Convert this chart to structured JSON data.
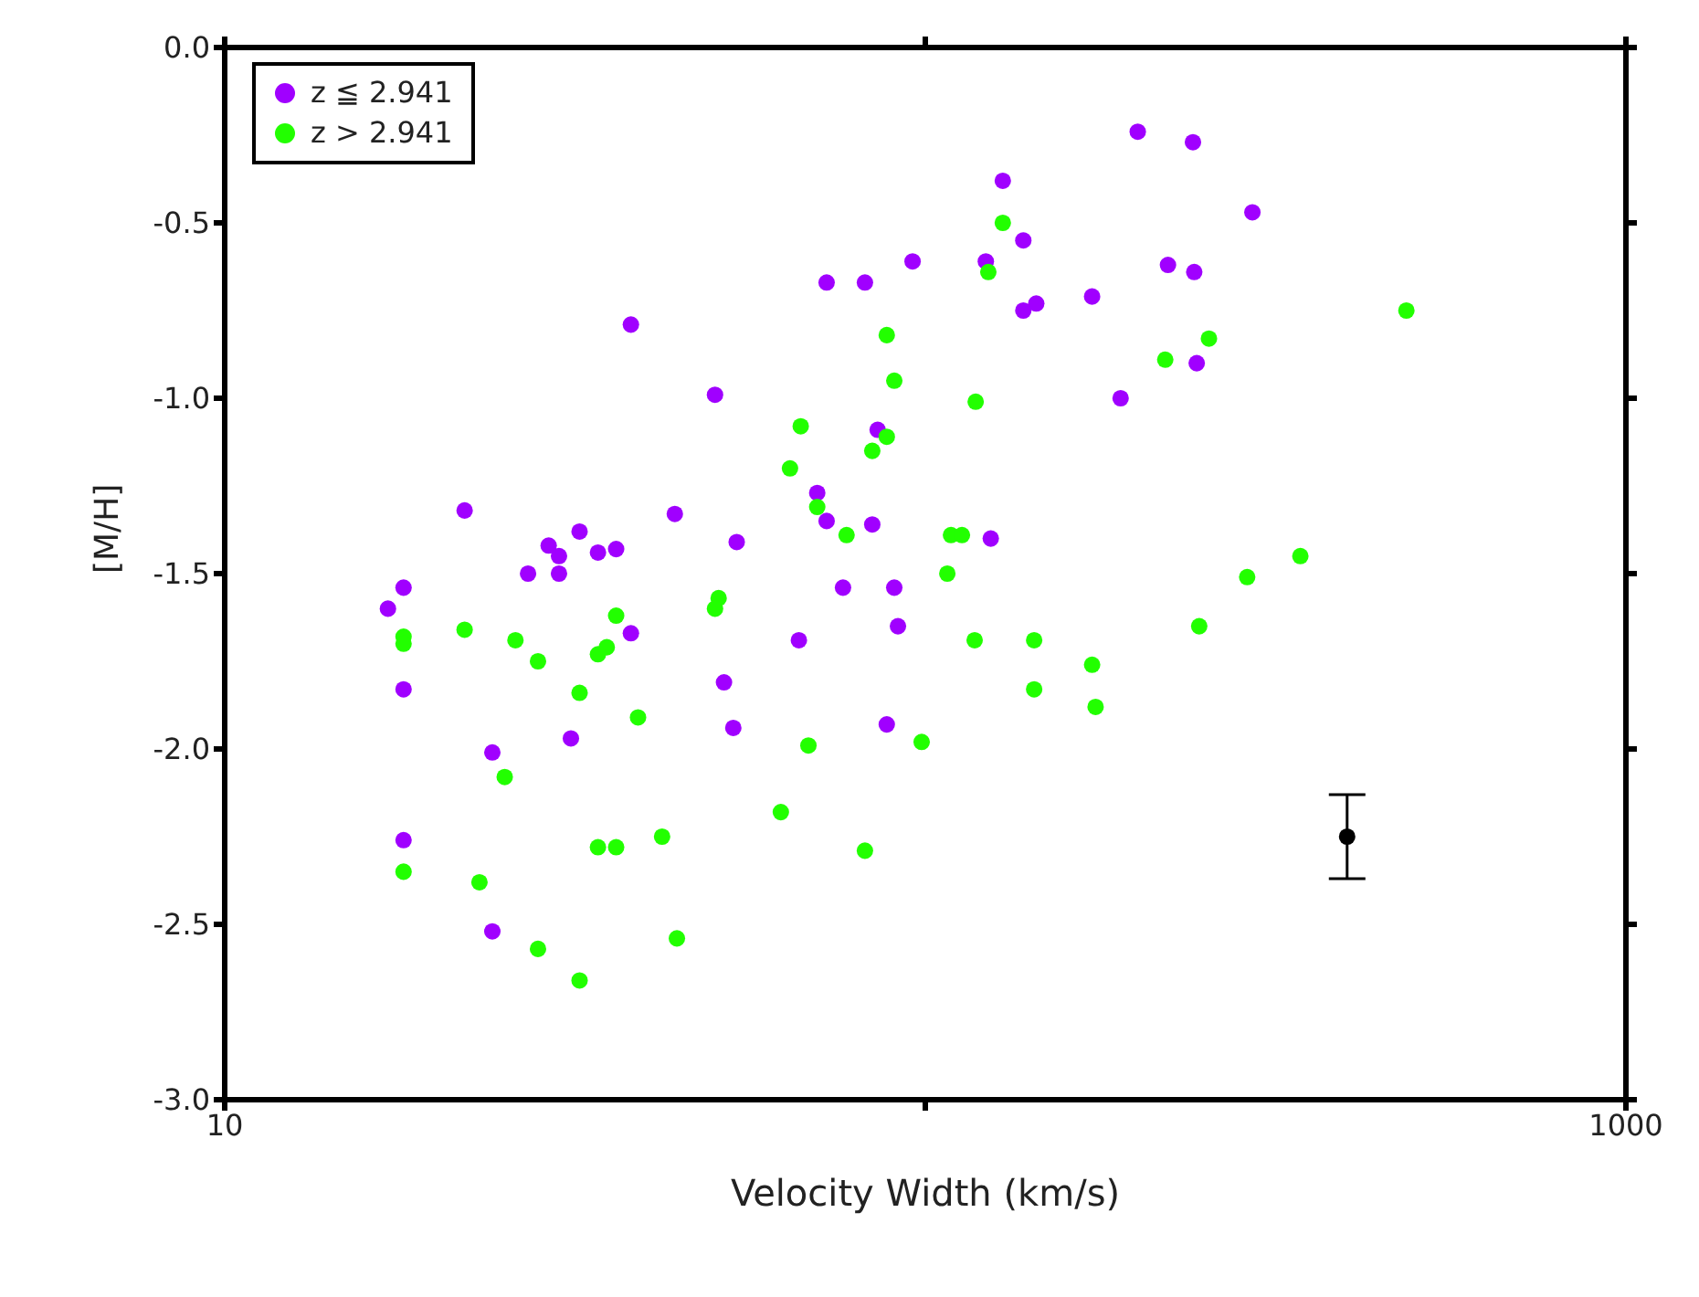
{
  "chart_data": {
    "type": "scatter",
    "xlabel": "Velocity Width (km/s)",
    "ylabel": "[M/H]",
    "log": "x",
    "xlim": [
      10,
      1000
    ],
    "xticks": [
      10,
      {
        "value": 100,
        "label": null
      },
      1000
    ],
    "ylim": [
      -3,
      0
    ],
    "yticks": [
      {
        "value": -3,
        "label": "-3.0"
      },
      {
        "value": -2.5,
        "label": "-2.5"
      },
      {
        "value": -2,
        "label": "-2.0"
      },
      {
        "value": -1.5,
        "label": "-1.5"
      },
      {
        "value": -1,
        "label": "-1.0"
      },
      {
        "value": -0.5,
        "label": "-0.5"
      },
      {
        "value": 0,
        "label": "0.0"
      }
    ],
    "legend": "top left",
    "marker": "circle",
    "series": [
      {
        "name": "z ≦ 2.941",
        "color": "#a000ff",
        "x": [
          17.1,
          18.0,
          18.0,
          18.0,
          24.1,
          24.1,
          22.0,
          32.1,
          29.0,
          30.0,
          30.0,
          27.1,
          34.1,
          36.2,
          38.0,
          43.9,
          50.1,
          53.8,
          72.3,
          82.0,
          95.9,
          85.5,
          70.1,
          72.3,
          84.0,
          76.3,
          90.3,
          38.0,
          31.2,
          66.0,
          51.6,
          53.2,
          91.4,
          88.1,
          201,
          241,
          129,
          293,
          138,
          122,
          222,
          242,
          144,
          138,
          173,
          244,
          190,
          124
        ],
        "values": [
          -1.6,
          -1.54,
          -1.83,
          -2.26,
          -2.52,
          -2.01,
          -1.32,
          -1.38,
          -1.42,
          -1.45,
          -1.5,
          -1.5,
          -1.44,
          -1.43,
          -0.79,
          -1.33,
          -0.99,
          -1.41,
          -0.67,
          -0.67,
          -0.61,
          -1.09,
          -1.27,
          -1.35,
          -1.36,
          -1.54,
          -1.54,
          -1.67,
          -1.97,
          -1.69,
          -1.81,
          -1.94,
          -1.65,
          -1.93,
          -0.24,
          -0.27,
          -0.38,
          -0.47,
          -0.55,
          -0.61,
          -0.62,
          -0.64,
          -0.73,
          -0.75,
          -0.71,
          -0.9,
          -1.0,
          -1.4
        ]
      },
      {
        "name": "z > 2.941",
        "color": "#22ff00",
        "x": [
          88.1,
          90.3,
          66.4,
          88.1,
          84.0,
          64.1,
          70.1,
          77.2,
          107.5,
          129,
          123,
          486,
          254,
          220,
          118,
          108.8,
          112.8,
          288,
          343,
          117.6,
          143,
          173,
          143,
          175,
          98.8,
          246,
          50.7,
          50.1,
          36.2,
          18.0,
          18.0,
          22.0,
          26.0,
          28.0,
          35.1,
          34.1,
          32.1,
          38.9,
          68.1,
          25.1,
          62.2,
          42.1,
          34.1,
          36.2,
          82.0,
          18.0,
          23.1,
          28.0,
          44.2,
          32.1
        ],
        "values": [
          -0.82,
          -0.95,
          -1.08,
          -1.11,
          -1.15,
          -1.2,
          -1.31,
          -1.39,
          -1.5,
          -0.5,
          -0.64,
          -0.75,
          -0.83,
          -0.89,
          -1.01,
          -1.39,
          -1.39,
          -1.51,
          -1.45,
          -1.69,
          -1.69,
          -1.76,
          -1.83,
          -1.88,
          -1.98,
          -1.65,
          -1.57,
          -1.6,
          -1.62,
          -1.68,
          -1.7,
          -1.66,
          -1.69,
          -1.75,
          -1.71,
          -1.73,
          -1.84,
          -1.91,
          -1.99,
          -2.08,
          -2.18,
          -2.25,
          -2.28,
          -2.28,
          -2.29,
          -2.35,
          -2.38,
          -2.57,
          -2.54,
          -2.66
        ]
      },
      {
        "color": "#000000",
        "x": [
          400
        ],
        "values": [
          -2.25
        ],
        "errors": [
          0.12
        ]
      }
    ]
  }
}
